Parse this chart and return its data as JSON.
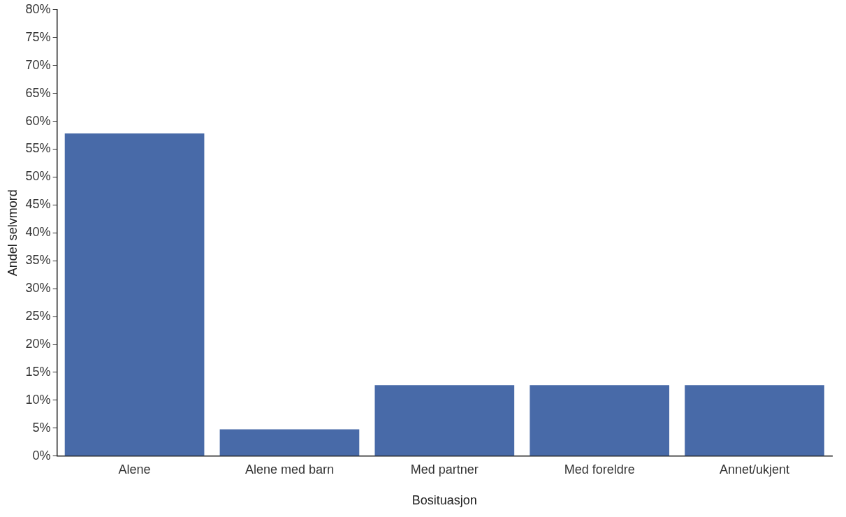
{
  "chart_data": {
    "type": "bar",
    "xlabel": "Bosituasjon",
    "ylabel": "Andel selvmord",
    "categories": [
      "Alene",
      "Alene med barn",
      "Med partner",
      "Med foreldre",
      "Annet/ukjent"
    ],
    "values": [
      57.8,
      4.8,
      12.7,
      12.7,
      12.7
    ],
    "color": "#486aa8",
    "ylim": [
      0,
      80
    ],
    "yticks": [
      {
        "value": 0,
        "label": "0%"
      },
      {
        "value": 5,
        "label": "5%"
      },
      {
        "value": 10,
        "label": "10%"
      },
      {
        "value": 15,
        "label": "15%"
      },
      {
        "value": 20,
        "label": "20%"
      },
      {
        "value": 25,
        "label": "25%"
      },
      {
        "value": 30,
        "label": "30%"
      },
      {
        "value": 35,
        "label": "35%"
      },
      {
        "value": 40,
        "label": "40%"
      },
      {
        "value": 45,
        "label": "45%"
      },
      {
        "value": 50,
        "label": "50%"
      },
      {
        "value": 55,
        "label": "55%"
      },
      {
        "value": 60,
        "label": "60%"
      },
      {
        "value": 65,
        "label": "65%"
      },
      {
        "value": 70,
        "label": "70%"
      },
      {
        "value": 75,
        "label": "75%"
      },
      {
        "value": 80,
        "label": "80%"
      }
    ],
    "grid": false,
    "legend": false
  }
}
